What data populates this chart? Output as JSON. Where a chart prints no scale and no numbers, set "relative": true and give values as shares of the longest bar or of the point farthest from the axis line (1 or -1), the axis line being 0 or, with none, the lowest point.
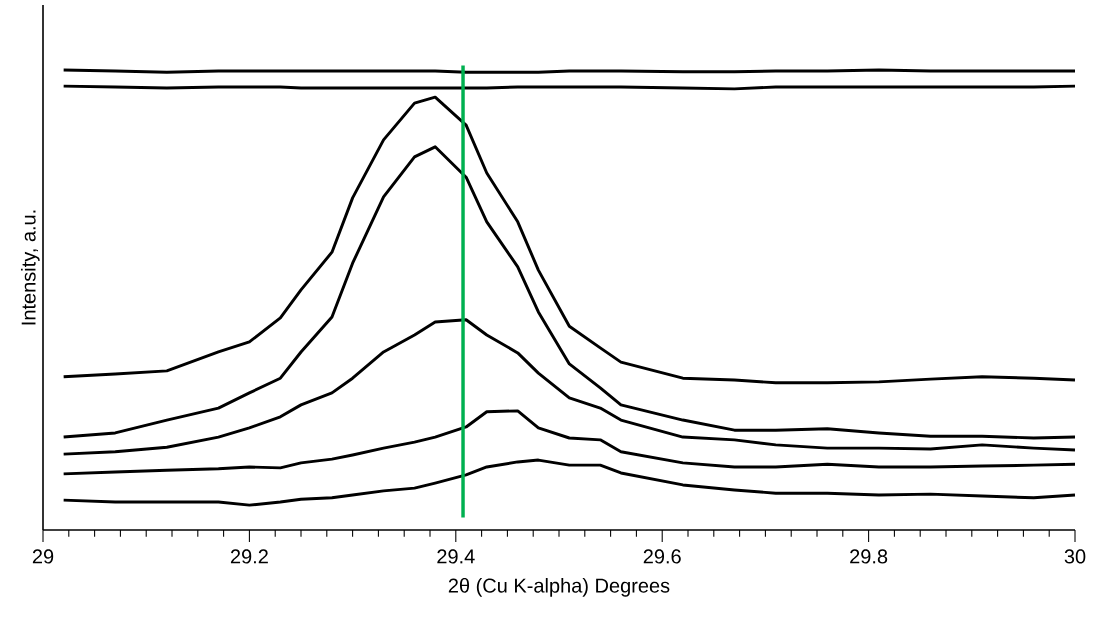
{
  "chart_data": {
    "type": "line",
    "xlabel": "2θ (Cu K-alpha) Degrees",
    "ylabel": "Intensity, a.u.",
    "relative": true,
    "x": [
      29.02,
      29.07,
      29.12,
      29.17,
      29.2,
      29.23,
      29.25,
      29.28,
      29.3,
      29.33,
      29.36,
      29.38,
      29.41,
      29.43,
      29.46,
      29.48,
      29.51,
      29.54,
      29.56,
      29.62,
      29.67,
      29.71,
      29.76,
      29.81,
      29.86,
      29.91,
      29.96,
      30.0
    ],
    "xlim": [
      29,
      30
    ],
    "xticks": [
      29,
      29.2,
      29.4,
      29.6,
      29.8,
      30
    ],
    "series": [
      {
        "color": "#000000",
        "values": [
          1.0,
          0.998,
          0.995,
          0.998,
          0.998,
          0.998,
          0.998,
          0.998,
          0.998,
          0.998,
          0.998,
          0.998,
          0.995,
          0.995,
          0.995,
          0.995,
          0.998,
          0.998,
          0.998,
          0.996,
          0.996,
          0.998,
          0.998,
          1.0,
          0.998,
          0.998,
          0.998,
          0.998
        ]
      },
      {
        "color": "#000000",
        "values": [
          0.965,
          0.963,
          0.961,
          0.963,
          0.963,
          0.963,
          0.961,
          0.961,
          0.961,
          0.961,
          0.961,
          0.961,
          0.961,
          0.961,
          0.963,
          0.963,
          0.963,
          0.963,
          0.963,
          0.961,
          0.959,
          0.963,
          0.963,
          0.963,
          0.963,
          0.963,
          0.963,
          0.965
        ]
      },
      {
        "color": "#000000",
        "values": [
          0.333,
          0.339,
          0.346,
          0.387,
          0.409,
          0.461,
          0.522,
          0.604,
          0.722,
          0.848,
          0.928,
          0.941,
          0.88,
          0.776,
          0.67,
          0.565,
          0.443,
          0.396,
          0.365,
          0.33,
          0.326,
          0.32,
          0.32,
          0.322,
          0.328,
          0.333,
          0.33,
          0.326
        ]
      },
      {
        "color": "#000000",
        "values": [
          0.202,
          0.211,
          0.239,
          0.265,
          0.298,
          0.33,
          0.387,
          0.463,
          0.58,
          0.724,
          0.811,
          0.833,
          0.767,
          0.67,
          0.572,
          0.474,
          0.361,
          0.309,
          0.272,
          0.239,
          0.217,
          0.217,
          0.22,
          0.211,
          0.204,
          0.204,
          0.2,
          0.202
        ]
      },
      {
        "color": "#000000",
        "values": [
          0.165,
          0.17,
          0.18,
          0.202,
          0.222,
          0.246,
          0.272,
          0.298,
          0.33,
          0.387,
          0.424,
          0.452,
          0.457,
          0.424,
          0.385,
          0.341,
          0.287,
          0.265,
          0.239,
          0.202,
          0.196,
          0.185,
          0.178,
          0.178,
          0.176,
          0.185,
          0.178,
          0.174
        ]
      },
      {
        "color": "#000000",
        "values": [
          0.122,
          0.126,
          0.13,
          0.133,
          0.137,
          0.135,
          0.146,
          0.154,
          0.163,
          0.178,
          0.191,
          0.202,
          0.224,
          0.257,
          0.259,
          0.222,
          0.2,
          0.196,
          0.17,
          0.146,
          0.137,
          0.137,
          0.143,
          0.137,
          0.137,
          0.139,
          0.141,
          0.143
        ]
      },
      {
        "color": "#000000",
        "values": [
          0.065,
          0.061,
          0.061,
          0.061,
          0.054,
          0.061,
          0.067,
          0.07,
          0.076,
          0.085,
          0.091,
          0.102,
          0.12,
          0.137,
          0.148,
          0.152,
          0.141,
          0.141,
          0.124,
          0.098,
          0.087,
          0.08,
          0.08,
          0.076,
          0.078,
          0.074,
          0.07,
          0.076
        ]
      }
    ],
    "ref_lines": [
      {
        "axis": "x",
        "value": 29.407,
        "color": "#00b050"
      }
    ]
  }
}
